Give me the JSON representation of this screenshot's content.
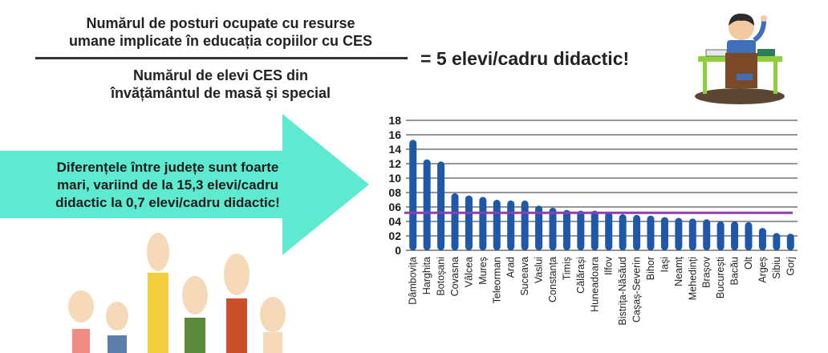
{
  "header": {
    "numerator_line1": "Numărul de posturi ocupate cu resurse",
    "numerator_line2": "umane implicate în educația copiilor cu CES",
    "denominator_line1": "Numărul de elevi CES din",
    "denominator_line2": "învățământul de masă și special",
    "result": "=  5 elevi/cadru didactic!"
  },
  "callout": {
    "line1": "Diferențele între județe sunt foarte",
    "line2": "mari, variind de la 15,3 elevi/cadru",
    "line3": "didactic la 0,7 elevi/cadru didactic!"
  },
  "colors": {
    "bar": "#1f58a8",
    "reference": "#8e3fb4",
    "arrow": "#5eead0"
  },
  "chart_data": {
    "type": "bar",
    "categories": [
      "Dâmbovița",
      "Harghita",
      "Botoșani",
      "Covasna",
      "Vâlcea",
      "Mureș",
      "Teleorman",
      "Arad",
      "Suceava",
      "Vaslui",
      "Constanța",
      "Timiș",
      "Călărași",
      "Huneadoara",
      "Ilfov",
      "Bistrița-Năsăud",
      "Cașaș-Severin",
      "Bihor",
      "Iași",
      "Neamț",
      "Mehedinți",
      "Brașov",
      "București",
      "Bacău",
      "Olt",
      "Argeș",
      "Sibiu",
      "Gorj"
    ],
    "values": [
      15.3,
      12.6,
      12.3,
      7.9,
      7.6,
      7.4,
      7.0,
      6.9,
      6.9,
      6.2,
      5.9,
      5.6,
      5.5,
      5.5,
      5.3,
      5.0,
      4.9,
      4.8,
      4.6,
      4.5,
      4.4,
      4.3,
      4.0,
      4.0,
      3.9,
      3.1,
      2.4,
      2.3
    ],
    "reference_value": 5.2,
    "ylim": [
      0,
      18
    ],
    "yticks": [
      "0",
      "02",
      "04",
      "06",
      "08",
      "10",
      "12",
      "14",
      "16",
      "18"
    ],
    "grid": true
  }
}
